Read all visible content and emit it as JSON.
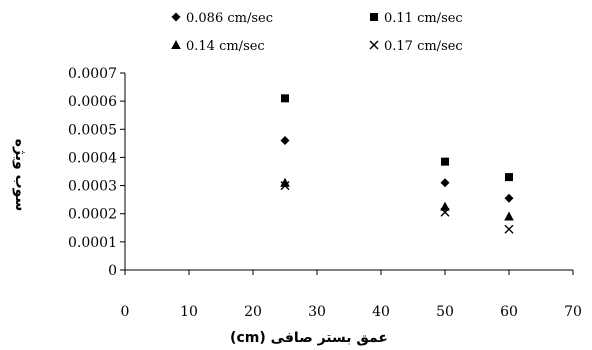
{
  "chart_data": {
    "type": "scatter",
    "title": "",
    "xlabel": "عمق بستر صافی (cm)",
    "ylabel": "سوب ویژه",
    "xlim": [
      0,
      70
    ],
    "ylim": [
      0,
      0.0007
    ],
    "x_ticks": [
      "0",
      "10",
      "20",
      "30",
      "40",
      "50",
      "60",
      "70"
    ],
    "y_ticks": [
      "0",
      "0.0001",
      "0.0002",
      "0.0003",
      "0.0004",
      "0.0005",
      "0.0006",
      "0.0007"
    ],
    "grid": false,
    "legend_position": "top",
    "series": [
      {
        "name": "0.086 cm/sec",
        "marker": "diamond",
        "color": "#000000",
        "x": [
          25,
          50,
          60
        ],
        "y": [
          0.00046,
          0.00031,
          0.000255
        ]
      },
      {
        "name": "0.11 cm/sec",
        "marker": "square",
        "color": "#000000",
        "x": [
          25,
          50,
          60
        ],
        "y": [
          0.00061,
          0.000385,
          0.00033
        ]
      },
      {
        "name": "0.14 cm/sec",
        "marker": "triangle",
        "color": "#000000",
        "x": [
          25,
          50,
          60
        ],
        "y": [
          0.00031,
          0.000225,
          0.00019
        ]
      },
      {
        "name": "0.17 cm/sec",
        "marker": "x",
        "color": "#000000",
        "x": [
          25,
          50,
          60
        ],
        "y": [
          0.0003,
          0.000205,
          0.000145
        ]
      }
    ]
  }
}
